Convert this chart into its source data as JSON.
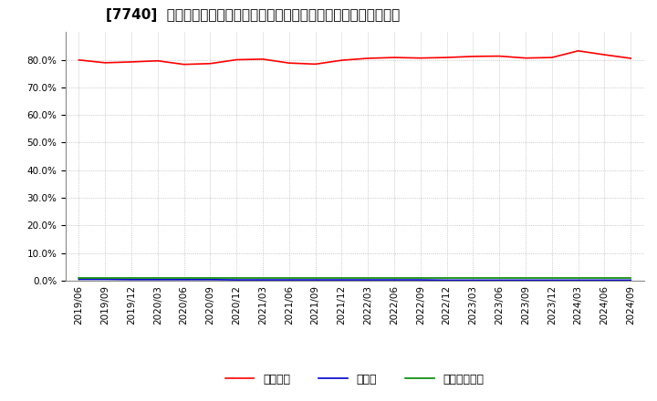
{
  "title": "[7740]  自己資本、のれん、繰延税金資産の総資産に対する比率の推移",
  "x_labels": [
    "2019/06",
    "2019/09",
    "2019/12",
    "2020/03",
    "2020/06",
    "2020/09",
    "2020/12",
    "2021/03",
    "2021/06",
    "2021/09",
    "2021/12",
    "2022/03",
    "2022/06",
    "2022/09",
    "2022/12",
    "2023/03",
    "2023/06",
    "2023/09",
    "2023/12",
    "2024/03",
    "2024/06",
    "2024/09"
  ],
  "equity_ratio": [
    0.799,
    0.789,
    0.792,
    0.796,
    0.783,
    0.786,
    0.8,
    0.802,
    0.788,
    0.784,
    0.798,
    0.805,
    0.808,
    0.806,
    0.808,
    0.812,
    0.813,
    0.806,
    0.808,
    0.832,
    0.818,
    0.805
  ],
  "noren_ratio": [
    0.005,
    0.005,
    0.004,
    0.004,
    0.004,
    0.004,
    0.003,
    0.003,
    0.003,
    0.003,
    0.003,
    0.003,
    0.003,
    0.003,
    0.002,
    0.002,
    0.002,
    0.002,
    0.002,
    0.002,
    0.002,
    0.002
  ],
  "deferred_tax_ratio": [
    0.01,
    0.01,
    0.01,
    0.01,
    0.01,
    0.01,
    0.01,
    0.01,
    0.01,
    0.01,
    0.01,
    0.01,
    0.01,
    0.01,
    0.01,
    0.01,
    0.01,
    0.01,
    0.01,
    0.01,
    0.01,
    0.01
  ],
  "line_colors": {
    "equity": "#ff0000",
    "noren": "#0000cc",
    "deferred": "#008800"
  },
  "legend_labels": {
    "equity": "自己資本",
    "noren": "のれん",
    "deferred": "繰延税金資産"
  },
  "ylim": [
    0.0,
    0.9
  ],
  "yticks": [
    0.0,
    0.1,
    0.2,
    0.3,
    0.4,
    0.5,
    0.6,
    0.7,
    0.8
  ],
  "background_color": "#ffffff",
  "grid_color": "#aaaaaa",
  "title_fontsize": 11,
  "axis_fontsize": 7.5
}
